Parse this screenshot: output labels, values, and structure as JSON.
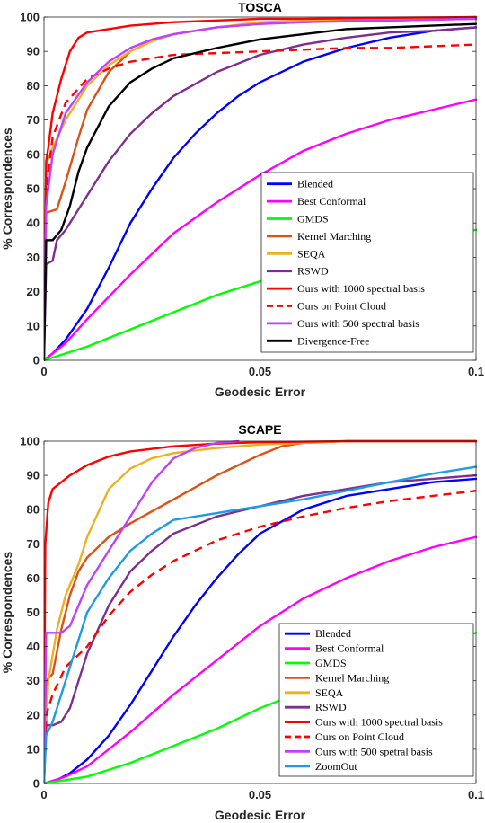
{
  "chart_data": [
    {
      "type": "line",
      "title": "TOSCA",
      "xlabel": "Geodesic Error",
      "ylabel": "% Correspondences",
      "xlim": [
        0,
        0.1
      ],
      "ylim": [
        0,
        100
      ],
      "xticks": [
        "0",
        "0.05",
        "0.1"
      ],
      "yticks": [
        "0",
        "10",
        "20",
        "30",
        "40",
        "50",
        "60",
        "70",
        "80",
        "90",
        "100"
      ],
      "grid": false,
      "legend_position": "bottom-right",
      "series": [
        {
          "name": "Blended",
          "color": "#0000ff",
          "dash": "solid",
          "x": [
            0,
            0.002,
            0.005,
            0.01,
            0.015,
            0.02,
            0.025,
            0.03,
            0.035,
            0.04,
            0.045,
            0.05,
            0.06,
            0.07,
            0.08,
            0.09,
            0.1
          ],
          "y": [
            0,
            2,
            6,
            15,
            27,
            40,
            50,
            59,
            66,
            72,
            77,
            81,
            87,
            91,
            94,
            96,
            97
          ]
        },
        {
          "name": "Best Conformal",
          "color": "#ff00ff",
          "dash": "solid",
          "x": [
            0,
            0.005,
            0.01,
            0.02,
            0.03,
            0.04,
            0.05,
            0.06,
            0.07,
            0.08,
            0.09,
            0.1
          ],
          "y": [
            0,
            5,
            12,
            25,
            37,
            46,
            54,
            61,
            66,
            70,
            73,
            76
          ]
        },
        {
          "name": "GMDS",
          "color": "#00ff00",
          "dash": "solid",
          "x": [
            0,
            0.005,
            0.01,
            0.02,
            0.03,
            0.04,
            0.05,
            0.06,
            0.07,
            0.08,
            0.09,
            0.1
          ],
          "y": [
            0,
            2,
            4,
            9,
            14,
            19,
            23,
            27,
            30,
            33,
            36,
            38
          ]
        },
        {
          "name": "Kernel Marching",
          "color": "#d95319",
          "dash": "solid",
          "x": [
            0,
            0.0005,
            0.003,
            0.005,
            0.008,
            0.01,
            0.015,
            0.02,
            0.025,
            0.03,
            0.04,
            0.05,
            0.06,
            0.07,
            0.08,
            0.1
          ],
          "y": [
            0,
            43,
            44,
            52,
            65,
            73,
            84,
            90,
            93,
            95,
            97,
            98,
            98.5,
            99,
            99,
            99.5
          ]
        },
        {
          "name": "SEQA",
          "color": "#edb120",
          "dash": "solid",
          "x": [
            0,
            0.0005,
            0.002,
            0.005,
            0.01,
            0.015,
            0.02,
            0.025,
            0.03,
            0.04,
            0.05,
            0.06,
            0.07,
            0.08,
            0.1
          ],
          "y": [
            0,
            57,
            62,
            70,
            80,
            86,
            90,
            93,
            95,
            97,
            98.5,
            99,
            99.5,
            99.5,
            100
          ]
        },
        {
          "name": "RSWD",
          "color": "#7e2f8e",
          "dash": "solid",
          "x": [
            0,
            0.0005,
            0.002,
            0.003,
            0.005,
            0.01,
            0.015,
            0.02,
            0.025,
            0.03,
            0.04,
            0.05,
            0.06,
            0.07,
            0.08,
            0.09,
            0.1
          ],
          "y": [
            0,
            28,
            29,
            35,
            38,
            48,
            58,
            66,
            72,
            77,
            84,
            89,
            92,
            94,
            95.5,
            96,
            97
          ]
        },
        {
          "name": "Ours with 1000 spectral basis",
          "color": "#ff0000",
          "dash": "solid",
          "x": [
            0,
            0.0005,
            0.001,
            0.002,
            0.004,
            0.006,
            0.008,
            0.01,
            0.015,
            0.02,
            0.03,
            0.04,
            0.05,
            0.06,
            0.08,
            0.1
          ],
          "y": [
            0,
            58,
            62,
            72,
            82,
            90,
            94,
            95.5,
            96.5,
            97.5,
            98.5,
            99,
            99.5,
            99.5,
            99.8,
            100
          ]
        },
        {
          "name": "Ours on Point Cloud",
          "color": "#ff0000",
          "dash": "dashed",
          "x": [
            0,
            0.0005,
            0.002,
            0.005,
            0.01,
            0.015,
            0.02,
            0.025,
            0.03,
            0.04,
            0.05,
            0.06,
            0.07,
            0.08,
            0.09,
            0.1
          ],
          "y": [
            0,
            50,
            65,
            75,
            82,
            85,
            87,
            88,
            89,
            89.5,
            90,
            90.5,
            91,
            91,
            91.5,
            92
          ]
        },
        {
          "name": "Ours with 500 spectral basis",
          "color": "#bf40ff",
          "dash": "solid",
          "x": [
            0,
            0.0005,
            0.002,
            0.005,
            0.01,
            0.015,
            0.02,
            0.025,
            0.03,
            0.04,
            0.05,
            0.06,
            0.08,
            0.1
          ],
          "y": [
            0,
            45,
            60,
            72,
            81,
            87,
            91,
            93.5,
            95,
            97,
            98,
            98.5,
            99,
            99.5
          ]
        },
        {
          "name": "Divergence-Free",
          "color": "#000000",
          "dash": "solid",
          "x": [
            0,
            0.0005,
            0.002,
            0.004,
            0.006,
            0.008,
            0.01,
            0.015,
            0.02,
            0.025,
            0.03,
            0.04,
            0.05,
            0.06,
            0.07,
            0.08,
            0.1
          ],
          "y": [
            0,
            35,
            35,
            38,
            45,
            55,
            62,
            74,
            81,
            85,
            88,
            91,
            93.5,
            95,
            96.5,
            97,
            98
          ]
        }
      ]
    },
    {
      "type": "line",
      "title": "SCAPE",
      "xlabel": "Geodesic Error",
      "ylabel": "% Correspondences",
      "xlim": [
        0,
        0.1
      ],
      "ylim": [
        0,
        100
      ],
      "xticks": [
        "0",
        "0.05",
        "0.1"
      ],
      "yticks": [
        "0",
        "10",
        "20",
        "30",
        "40",
        "50",
        "60",
        "70",
        "80",
        "90",
        "100"
      ],
      "grid": false,
      "legend_position": "bottom-right",
      "series": [
        {
          "name": "Blended",
          "color": "#0000ff",
          "dash": "solid",
          "x": [
            0,
            0.003,
            0.006,
            0.01,
            0.015,
            0.02,
            0.025,
            0.03,
            0.035,
            0.04,
            0.045,
            0.05,
            0.06,
            0.07,
            0.08,
            0.09,
            0.1
          ],
          "y": [
            0,
            1,
            3,
            7,
            14,
            23,
            33,
            43,
            52,
            60,
            67,
            73,
            80,
            84,
            86,
            88,
            89
          ]
        },
        {
          "name": "Best Conformal",
          "color": "#ff00ff",
          "dash": "solid",
          "x": [
            0,
            0.005,
            0.01,
            0.02,
            0.03,
            0.04,
            0.05,
            0.06,
            0.07,
            0.08,
            0.09,
            0.1
          ],
          "y": [
            0,
            2,
            5,
            15,
            26,
            36,
            46,
            54,
            60,
            65,
            69,
            72
          ]
        },
        {
          "name": "GMDS",
          "color": "#00ff00",
          "dash": "solid",
          "x": [
            0,
            0.005,
            0.01,
            0.02,
            0.03,
            0.04,
            0.05,
            0.06,
            0.07,
            0.08,
            0.09,
            0.1
          ],
          "y": [
            0,
            1,
            2,
            6,
            11,
            16,
            22,
            27,
            32,
            37,
            41,
            44
          ]
        },
        {
          "name": "Kernel Marching",
          "color": "#d95319",
          "dash": "solid",
          "x": [
            0,
            0.0005,
            0.002,
            0.004,
            0.006,
            0.008,
            0.01,
            0.015,
            0.02,
            0.03,
            0.04,
            0.05,
            0.055,
            0.06,
            0.07,
            0.1
          ],
          "y": [
            0,
            30,
            32,
            45,
            55,
            62,
            66,
            72,
            76,
            83,
            90,
            96,
            98.5,
            99.5,
            100,
            100
          ]
        },
        {
          "name": "SEQA",
          "color": "#edb120",
          "dash": "solid",
          "x": [
            0,
            0.001,
            0.003,
            0.005,
            0.008,
            0.01,
            0.015,
            0.02,
            0.025,
            0.03,
            0.04,
            0.05,
            0.06,
            0.07,
            0.1
          ],
          "y": [
            0,
            30,
            45,
            55,
            64,
            72,
            86,
            92,
            95,
            96.5,
            98,
            99,
            99.5,
            100,
            100
          ]
        },
        {
          "name": "RSWD",
          "color": "#7e2f8e",
          "dash": "solid",
          "x": [
            0,
            0.0005,
            0.002,
            0.004,
            0.006,
            0.008,
            0.01,
            0.015,
            0.02,
            0.025,
            0.03,
            0.04,
            0.05,
            0.06,
            0.07,
            0.08,
            0.09,
            0.1
          ],
          "y": [
            0,
            17,
            17,
            18,
            22,
            30,
            38,
            52,
            62,
            68,
            73,
            78,
            81,
            84,
            86,
            88,
            89,
            90
          ]
        },
        {
          "name": "Ours with 1000 spectral basis",
          "color": "#ff0000",
          "dash": "solid",
          "x": [
            0,
            0.0003,
            0.001,
            0.002,
            0.004,
            0.006,
            0.01,
            0.015,
            0.02,
            0.03,
            0.04,
            0.05,
            0.07,
            0.1
          ],
          "y": [
            0,
            70,
            82,
            86,
            88,
            90,
            93,
            95.5,
            97,
            98.5,
            99.3,
            99.7,
            100,
            100
          ]
        },
        {
          "name": "Ours on Point Cloud",
          "color": "#ff0000",
          "dash": "dashed",
          "x": [
            0,
            0.0005,
            0.002,
            0.005,
            0.01,
            0.015,
            0.02,
            0.025,
            0.03,
            0.04,
            0.05,
            0.06,
            0.07,
            0.08,
            0.09,
            0.1
          ],
          "y": [
            0,
            20,
            26,
            34,
            40,
            49,
            56,
            61,
            65,
            71,
            75,
            78,
            80.5,
            82.5,
            84,
            85.5
          ]
        },
        {
          "name": "Ours with 500 spetral basis",
          "color": "#bf40ff",
          "dash": "solid",
          "x": [
            0,
            0.0005,
            0.004,
            0.006,
            0.008,
            0.01,
            0.015,
            0.02,
            0.025,
            0.03,
            0.035,
            0.04,
            0.045
          ],
          "y": [
            0,
            44,
            44,
            46,
            52,
            58,
            68,
            78,
            88,
            95,
            98,
            99.5,
            100
          ]
        },
        {
          "name": "ZoomOut",
          "color": "#1f9be6",
          "dash": "solid",
          "x": [
            0,
            0.0005,
            0.002,
            0.005,
            0.008,
            0.01,
            0.015,
            0.02,
            0.025,
            0.03,
            0.04,
            0.05,
            0.06,
            0.07,
            0.08,
            0.09,
            0.1
          ],
          "y": [
            0,
            14,
            18,
            30,
            42,
            50,
            60,
            68,
            73,
            77,
            79,
            81,
            83,
            85.5,
            88,
            90.5,
            92.5
          ]
        }
      ]
    }
  ]
}
